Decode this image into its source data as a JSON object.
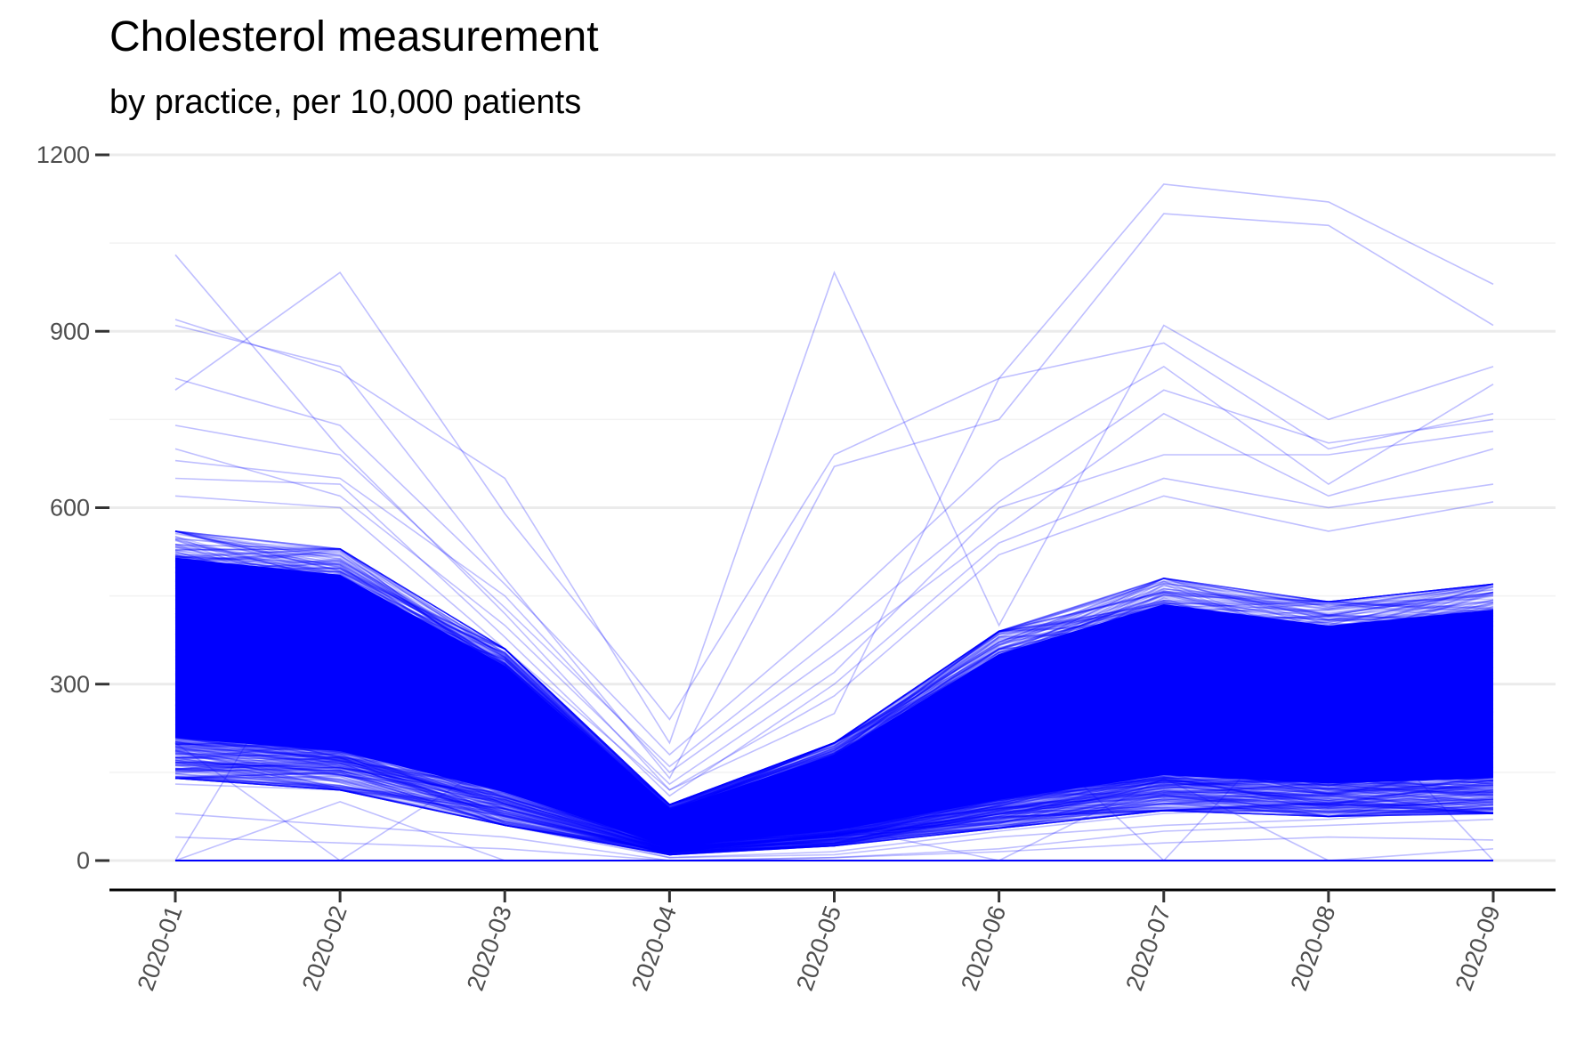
{
  "chart_data": {
    "type": "line",
    "title": "Cholesterol measurement",
    "subtitle": "by practice, per 10,000 patients",
    "xlabel": "",
    "ylabel": "",
    "categories": [
      "2020-01",
      "2020-02",
      "2020-03",
      "2020-04",
      "2020-05",
      "2020-06",
      "2020-07",
      "2020-08",
      "2020-09"
    ],
    "y_ticks": [
      0,
      300,
      600,
      900,
      1200
    ],
    "ylim": [
      0,
      1200
    ],
    "grid": "horizontal",
    "legend": "none",
    "line_color": "#0000ff",
    "series_description_count": 1,
    "bands": {
      "median": [
        310,
        285,
        200,
        45,
        90,
        175,
        235,
        215,
        230
      ],
      "lower": [
        140,
        120,
        60,
        10,
        25,
        55,
        85,
        75,
        80
      ],
      "upper": [
        560,
        530,
        360,
        95,
        200,
        390,
        480,
        440,
        470
      ]
    },
    "series": [
      {
        "values": [
          1030,
          700,
          420,
          120,
          250,
          820,
          1150,
          1120,
          980
        ]
      },
      {
        "values": [
          910,
          840,
          480,
          140,
          670,
          750,
          1100,
          1080,
          910
        ]
      },
      {
        "values": [
          920,
          830,
          650,
          200,
          1000,
          400,
          910,
          750,
          840
        ]
      },
      {
        "values": [
          800,
          1000,
          590,
          240,
          690,
          820,
          880,
          700,
          760
        ]
      },
      {
        "values": [
          820,
          740,
          470,
          180,
          420,
          680,
          840,
          640,
          810
        ]
      },
      {
        "values": [
          740,
          690,
          430,
          160,
          380,
          610,
          800,
          710,
          750
        ]
      },
      {
        "values": [
          680,
          650,
          450,
          150,
          350,
          560,
          760,
          620,
          700
        ]
      },
      {
        "values": [
          700,
          620,
          400,
          130,
          320,
          600,
          690,
          690,
          730
        ]
      },
      {
        "values": [
          650,
          640,
          380,
          110,
          300,
          540,
          650,
          600,
          640
        ]
      },
      {
        "values": [
          620,
          600,
          360,
          120,
          280,
          520,
          620,
          560,
          610
        ]
      },
      {
        "values": [
          0,
          460,
          300,
          60,
          100,
          260,
          0,
          300,
          0
        ]
      },
      {
        "values": [
          200,
          0,
          180,
          20,
          60,
          0,
          140,
          0,
          20
        ]
      },
      {
        "values": [
          0,
          100,
          0,
          0,
          0,
          0,
          0,
          0,
          0
        ]
      },
      {
        "values": [
          170,
          150,
          70,
          5,
          10,
          40,
          60,
          70,
          90
        ]
      },
      {
        "values": [
          130,
          120,
          60,
          5,
          15,
          50,
          80,
          90,
          100
        ]
      },
      {
        "values": [
          80,
          60,
          40,
          0,
          5,
          20,
          50,
          60,
          70
        ]
      },
      {
        "values": [
          40,
          30,
          20,
          0,
          5,
          15,
          30,
          40,
          35
        ]
      }
    ]
  }
}
